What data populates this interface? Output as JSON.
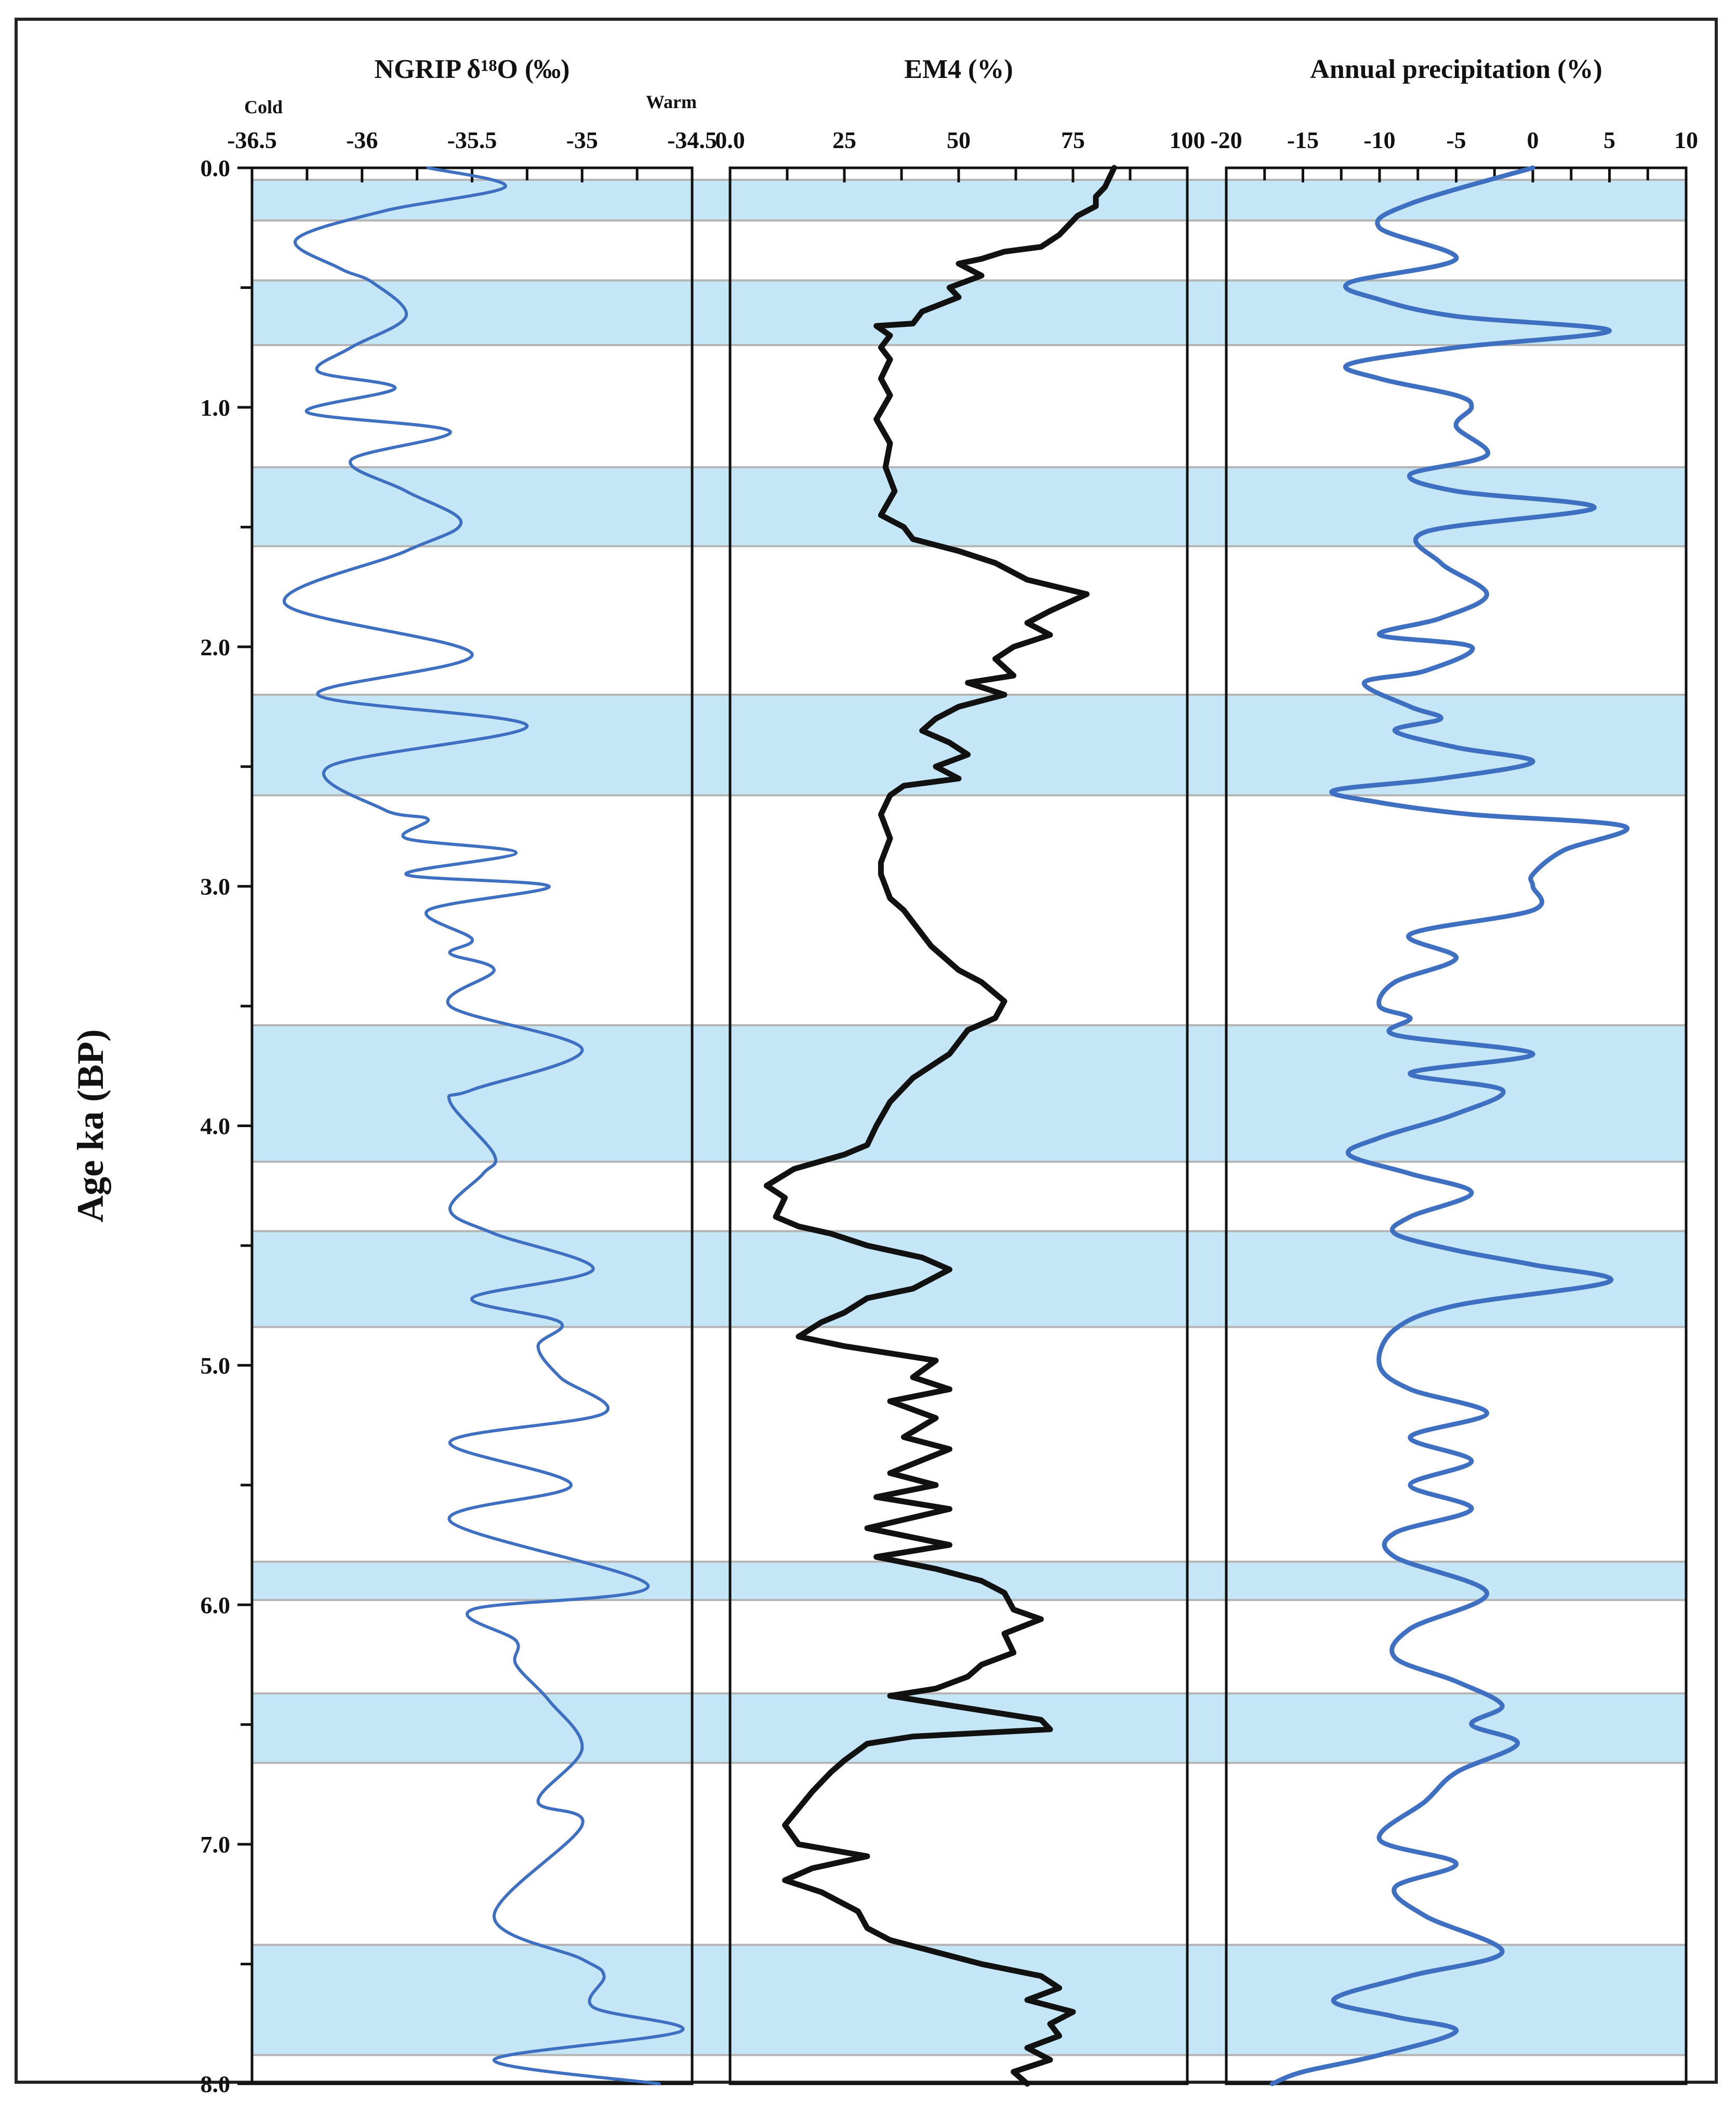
{
  "chart_data": {
    "type": "line",
    "ylabel": "Age ka  (BP)",
    "y_axis": {
      "range": [
        0,
        8
      ],
      "ticks": [
        "0.0",
        "1.0",
        "2.0",
        "3.0",
        "4.0",
        "5.0",
        "6.0",
        "7.0",
        "8.0"
      ],
      "tick_values": [
        0,
        1,
        2,
        3,
        4,
        5,
        6,
        7,
        8
      ]
    },
    "shaded_intervals": [
      [
        0.05,
        0.22
      ],
      [
        0.47,
        0.74
      ],
      [
        1.25,
        1.58
      ],
      [
        2.2,
        2.62
      ],
      [
        3.58,
        4.15
      ],
      [
        4.44,
        4.84
      ],
      [
        5.82,
        5.98
      ],
      [
        6.37,
        6.66
      ],
      [
        7.42,
        7.88
      ]
    ],
    "panels": [
      {
        "title": "NGRIP δ¹⁸O (‰)",
        "xlim": [
          -36.5,
          -34.5
        ],
        "ticks": [
          "-36.5",
          "-36",
          "-35.5",
          "-35",
          "-34.5"
        ],
        "tick_values": [
          -36.5,
          -36,
          -35.5,
          -35,
          -34.5
        ],
        "left_note": "Cold",
        "right_note": "Warm",
        "color": "#3f6fc0",
        "points": [
          [
            -35.7,
            0.0
          ],
          [
            -35.35,
            0.08
          ],
          [
            -35.9,
            0.18
          ],
          [
            -36.3,
            0.3
          ],
          [
            -36.1,
            0.42
          ],
          [
            -35.95,
            0.48
          ],
          [
            -35.8,
            0.62
          ],
          [
            -36.05,
            0.75
          ],
          [
            -36.2,
            0.85
          ],
          [
            -35.85,
            0.92
          ],
          [
            -36.25,
            1.02
          ],
          [
            -35.6,
            1.1
          ],
          [
            -36.05,
            1.22
          ],
          [
            -35.8,
            1.35
          ],
          [
            -35.55,
            1.48
          ],
          [
            -35.8,
            1.6
          ],
          [
            -36.35,
            1.82
          ],
          [
            -35.5,
            2.03
          ],
          [
            -36.2,
            2.2
          ],
          [
            -35.25,
            2.33
          ],
          [
            -36.15,
            2.5
          ],
          [
            -35.9,
            2.68
          ],
          [
            -35.7,
            2.72
          ],
          [
            -35.8,
            2.8
          ],
          [
            -35.3,
            2.86
          ],
          [
            -35.8,
            2.95
          ],
          [
            -35.15,
            3.0
          ],
          [
            -35.7,
            3.1
          ],
          [
            -35.5,
            3.22
          ],
          [
            -35.6,
            3.28
          ],
          [
            -35.4,
            3.35
          ],
          [
            -35.6,
            3.5
          ],
          [
            -35.0,
            3.68
          ],
          [
            -35.5,
            3.85
          ],
          [
            -35.6,
            3.9
          ],
          [
            -35.4,
            4.12
          ],
          [
            -35.45,
            4.2
          ],
          [
            -35.6,
            4.35
          ],
          [
            -35.4,
            4.45
          ],
          [
            -34.95,
            4.6
          ],
          [
            -35.5,
            4.72
          ],
          [
            -35.1,
            4.82
          ],
          [
            -35.2,
            4.92
          ],
          [
            -35.1,
            5.05
          ],
          [
            -34.9,
            5.2
          ],
          [
            -35.6,
            5.32
          ],
          [
            -35.05,
            5.5
          ],
          [
            -35.6,
            5.65
          ],
          [
            -34.7,
            5.92
          ],
          [
            -35.5,
            6.02
          ],
          [
            -35.3,
            6.15
          ],
          [
            -35.3,
            6.25
          ],
          [
            -35.15,
            6.4
          ],
          [
            -35.0,
            6.6
          ],
          [
            -35.2,
            6.82
          ],
          [
            -35.0,
            6.92
          ],
          [
            -35.4,
            7.3
          ],
          [
            -35.0,
            7.48
          ],
          [
            -34.9,
            7.55
          ],
          [
            -34.95,
            7.68
          ],
          [
            -34.55,
            7.78
          ],
          [
            -35.4,
            7.9
          ],
          [
            -34.65,
            8.0
          ]
        ]
      },
      {
        "title": "EM4 (%)",
        "xlim": [
          0,
          100
        ],
        "ticks": [
          "0.0",
          "25",
          "50",
          "75",
          "100"
        ],
        "tick_values": [
          0,
          25,
          50,
          75,
          100
        ],
        "color": "#111111",
        "points": [
          [
            84,
            0.0
          ],
          [
            82,
            0.08
          ],
          [
            80,
            0.12
          ],
          [
            80,
            0.16
          ],
          [
            76,
            0.2
          ],
          [
            72,
            0.28
          ],
          [
            68,
            0.33
          ],
          [
            60,
            0.35
          ],
          [
            55,
            0.38
          ],
          [
            50,
            0.4
          ],
          [
            55,
            0.45
          ],
          [
            48,
            0.5
          ],
          [
            50,
            0.54
          ],
          [
            42,
            0.6
          ],
          [
            40,
            0.65
          ],
          [
            32,
            0.66
          ],
          [
            35,
            0.7
          ],
          [
            33,
            0.75
          ],
          [
            35,
            0.8
          ],
          [
            33,
            0.88
          ],
          [
            35,
            0.95
          ],
          [
            32,
            1.05
          ],
          [
            35,
            1.15
          ],
          [
            34,
            1.25
          ],
          [
            36,
            1.35
          ],
          [
            33,
            1.45
          ],
          [
            38,
            1.5
          ],
          [
            40,
            1.55
          ],
          [
            50,
            1.6
          ],
          [
            58,
            1.65
          ],
          [
            65,
            1.72
          ],
          [
            78,
            1.78
          ],
          [
            70,
            1.85
          ],
          [
            65,
            1.9
          ],
          [
            70,
            1.95
          ],
          [
            62,
            2.0
          ],
          [
            58,
            2.05
          ],
          [
            62,
            2.12
          ],
          [
            52,
            2.15
          ],
          [
            60,
            2.2
          ],
          [
            50,
            2.25
          ],
          [
            45,
            2.3
          ],
          [
            42,
            2.35
          ],
          [
            48,
            2.4
          ],
          [
            52,
            2.45
          ],
          [
            45,
            2.5
          ],
          [
            50,
            2.55
          ],
          [
            38,
            2.58
          ],
          [
            35,
            2.62
          ],
          [
            33,
            2.7
          ],
          [
            35,
            2.8
          ],
          [
            33,
            2.9
          ],
          [
            33,
            2.95
          ],
          [
            35,
            3.05
          ],
          [
            38,
            3.1
          ],
          [
            40,
            3.15
          ],
          [
            44,
            3.25
          ],
          [
            50,
            3.35
          ],
          [
            55,
            3.4
          ],
          [
            60,
            3.48
          ],
          [
            58,
            3.55
          ],
          [
            52,
            3.6
          ],
          [
            48,
            3.7
          ],
          [
            40,
            3.8
          ],
          [
            35,
            3.9
          ],
          [
            32,
            4.0
          ],
          [
            30,
            4.08
          ],
          [
            25,
            4.12
          ],
          [
            14,
            4.18
          ],
          [
            8,
            4.25
          ],
          [
            12,
            4.3
          ],
          [
            10,
            4.38
          ],
          [
            15,
            4.42
          ],
          [
            22,
            4.45
          ],
          [
            30,
            4.5
          ],
          [
            42,
            4.55
          ],
          [
            48,
            4.6
          ],
          [
            40,
            4.68
          ],
          [
            30,
            4.72
          ],
          [
            25,
            4.78
          ],
          [
            20,
            4.82
          ],
          [
            15,
            4.88
          ],
          [
            25,
            4.92
          ],
          [
            35,
            4.95
          ],
          [
            45,
            4.98
          ],
          [
            40,
            5.05
          ],
          [
            48,
            5.1
          ],
          [
            35,
            5.15
          ],
          [
            45,
            5.22
          ],
          [
            38,
            5.3
          ],
          [
            48,
            5.35
          ],
          [
            35,
            5.45
          ],
          [
            45,
            5.5
          ],
          [
            32,
            5.55
          ],
          [
            48,
            5.6
          ],
          [
            30,
            5.68
          ],
          [
            48,
            5.75
          ],
          [
            32,
            5.8
          ],
          [
            45,
            5.85
          ],
          [
            55,
            5.9
          ],
          [
            60,
            5.95
          ],
          [
            62,
            6.02
          ],
          [
            68,
            6.06
          ],
          [
            60,
            6.12
          ],
          [
            62,
            6.2
          ],
          [
            55,
            6.25
          ],
          [
            52,
            6.3
          ],
          [
            45,
            6.35
          ],
          [
            35,
            6.38
          ],
          [
            48,
            6.42
          ],
          [
            68,
            6.48
          ],
          [
            70,
            6.52
          ],
          [
            40,
            6.55
          ],
          [
            30,
            6.58
          ],
          [
            25,
            6.65
          ],
          [
            22,
            6.7
          ],
          [
            18,
            6.78
          ],
          [
            15,
            6.85
          ],
          [
            12,
            6.92
          ],
          [
            15,
            7.0
          ],
          [
            30,
            7.05
          ],
          [
            18,
            7.1
          ],
          [
            12,
            7.15
          ],
          [
            20,
            7.2
          ],
          [
            28,
            7.28
          ],
          [
            30,
            7.35
          ],
          [
            35,
            7.4
          ],
          [
            45,
            7.45
          ],
          [
            55,
            7.5
          ],
          [
            68,
            7.55
          ],
          [
            72,
            7.6
          ],
          [
            65,
            7.65
          ],
          [
            75,
            7.7
          ],
          [
            70,
            7.75
          ],
          [
            72,
            7.8
          ],
          [
            65,
            7.85
          ],
          [
            70,
            7.9
          ],
          [
            62,
            7.95
          ],
          [
            65,
            8.0
          ]
        ]
      },
      {
        "title": "Annual precipitation (%)",
        "xlim": [
          -20,
          10
        ],
        "ticks": [
          "-20",
          "-15",
          "-10",
          "-5",
          "0",
          "5",
          "10"
        ],
        "tick_values": [
          -20,
          -15,
          -10,
          -5,
          0,
          5,
          10
        ],
        "color": "#3f6fc0",
        "points": [
          [
            0,
            0.0
          ],
          [
            -8,
            0.15
          ],
          [
            -10,
            0.25
          ],
          [
            -5,
            0.38
          ],
          [
            -12,
            0.48
          ],
          [
            -10,
            0.55
          ],
          [
            -5,
            0.62
          ],
          [
            5,
            0.68
          ],
          [
            -5,
            0.75
          ],
          [
            -12,
            0.82
          ],
          [
            -10,
            0.88
          ],
          [
            -5,
            0.95
          ],
          [
            -4,
            1.0
          ],
          [
            -5,
            1.08
          ],
          [
            -3,
            1.2
          ],
          [
            -8,
            1.28
          ],
          [
            -5,
            1.35
          ],
          [
            4,
            1.42
          ],
          [
            -7,
            1.52
          ],
          [
            -6,
            1.65
          ],
          [
            -3,
            1.78
          ],
          [
            -6,
            1.88
          ],
          [
            -10,
            1.95
          ],
          [
            -4,
            2.0
          ],
          [
            -7,
            2.1
          ],
          [
            -11,
            2.15
          ],
          [
            -8,
            2.25
          ],
          [
            -6,
            2.3
          ],
          [
            -9,
            2.35
          ],
          [
            -5,
            2.42
          ],
          [
            0,
            2.48
          ],
          [
            -6,
            2.55
          ],
          [
            -13,
            2.6
          ],
          [
            -10,
            2.65
          ],
          [
            -4,
            2.7
          ],
          [
            6,
            2.75
          ],
          [
            2,
            2.85
          ],
          [
            0,
            2.95
          ],
          [
            0,
            3.0
          ],
          [
            0,
            3.1
          ],
          [
            -8,
            3.2
          ],
          [
            -5,
            3.3
          ],
          [
            -9,
            3.4
          ],
          [
            -10,
            3.5
          ],
          [
            -8,
            3.55
          ],
          [
            -9,
            3.62
          ],
          [
            0,
            3.7
          ],
          [
            -8,
            3.78
          ],
          [
            -2,
            3.85
          ],
          [
            -5,
            3.95
          ],
          [
            -10,
            4.05
          ],
          [
            -12,
            4.12
          ],
          [
            -8,
            4.2
          ],
          [
            -4,
            4.28
          ],
          [
            -8,
            4.38
          ],
          [
            -9,
            4.45
          ],
          [
            -5,
            4.52
          ],
          [
            0,
            4.58
          ],
          [
            5,
            4.65
          ],
          [
            -5,
            4.75
          ],
          [
            -9,
            4.85
          ],
          [
            -10,
            5.0
          ],
          [
            -8,
            5.1
          ],
          [
            -3,
            5.2
          ],
          [
            -8,
            5.3
          ],
          [
            -4,
            5.4
          ],
          [
            -8,
            5.5
          ],
          [
            -4,
            5.6
          ],
          [
            -9,
            5.7
          ],
          [
            -9,
            5.8
          ],
          [
            -3,
            5.95
          ],
          [
            -8,
            6.1
          ],
          [
            -9,
            6.22
          ],
          [
            -5,
            6.32
          ],
          [
            -2,
            6.42
          ],
          [
            -4,
            6.5
          ],
          [
            -1,
            6.58
          ],
          [
            -5,
            6.7
          ],
          [
            -7,
            6.82
          ],
          [
            -10,
            6.98
          ],
          [
            -5,
            7.08
          ],
          [
            -9,
            7.18
          ],
          [
            -7,
            7.3
          ],
          [
            -2,
            7.45
          ],
          [
            -8,
            7.55
          ],
          [
            -13,
            7.65
          ],
          [
            -9,
            7.72
          ],
          [
            -5,
            7.78
          ],
          [
            -10,
            7.88
          ],
          [
            -15,
            7.95
          ],
          [
            -17,
            8.0
          ]
        ]
      }
    ]
  }
}
